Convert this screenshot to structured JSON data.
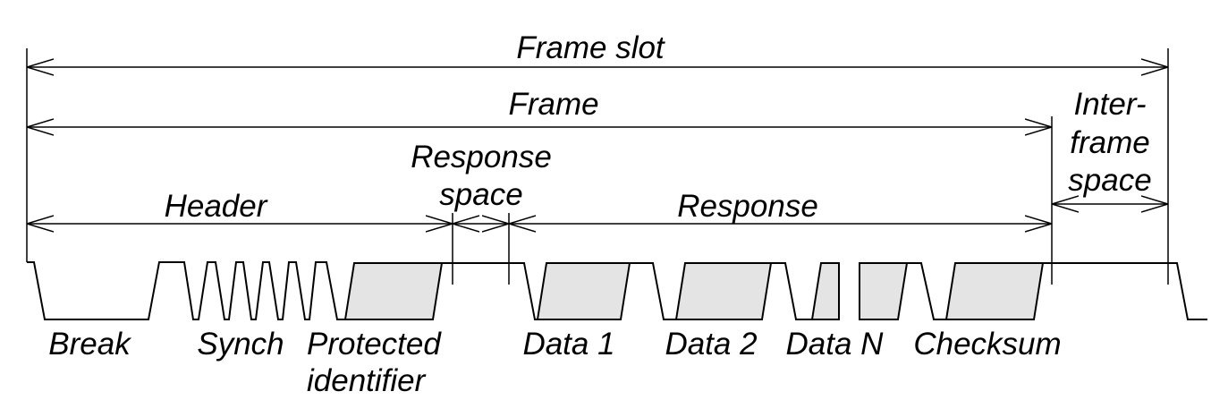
{
  "spans": {
    "frame_slot": "Frame slot",
    "frame": "Frame",
    "header": "Header",
    "response_space_1": "Response",
    "response_space_2": "space",
    "response": "Response",
    "interframe_1": "Inter-",
    "interframe_2": "frame",
    "interframe_3": "space"
  },
  "fields": {
    "break": "Break",
    "synch": "Synch",
    "protected_1": "Protected",
    "protected_2": "identifier",
    "data1": "Data 1",
    "data2": "Data 2",
    "dataN": "Data N",
    "checksum": "Checksum"
  },
  "colors": {
    "line": "#000000",
    "field_fill": "#e4e4e4",
    "background": "#ffffff"
  }
}
